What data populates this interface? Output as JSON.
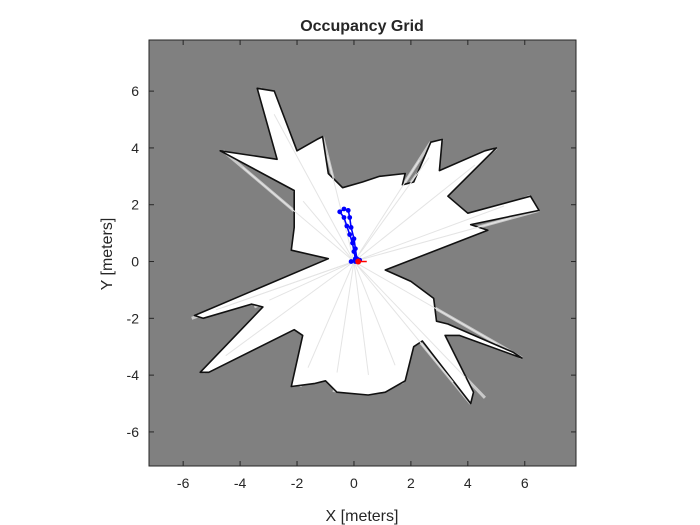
{
  "chart_data": {
    "type": "heatmap",
    "title": "Occupancy Grid",
    "xlabel": "X [meters]",
    "ylabel": "Y [meters]",
    "xlim": [
      -7.2,
      7.8
    ],
    "ylim": [
      -7.2,
      7.8
    ],
    "xticks": [
      -6,
      -4,
      -2,
      0,
      2,
      4,
      6
    ],
    "yticks": [
      -6,
      -4,
      -2,
      0,
      2,
      4,
      6
    ],
    "colors": {
      "unknown": "#808080",
      "free": "#ffffff",
      "free_shade": "#d2d2d2",
      "occupied": "#111111",
      "trajectory": "#0000ff",
      "robot": "#ff0000"
    },
    "free_space_outline": [
      [
        -0.9,
        0.1
      ],
      [
        -5.6,
        -1.9
      ],
      [
        -5.3,
        -2.0
      ],
      [
        -3.6,
        -1.5
      ],
      [
        -3.2,
        -1.6
      ],
      [
        -5.4,
        -3.9
      ],
      [
        -5.1,
        -3.9
      ],
      [
        -2.1,
        -2.4
      ],
      [
        -1.8,
        -2.6
      ],
      [
        -2.2,
        -4.4
      ],
      [
        -1.4,
        -4.3
      ],
      [
        -1.0,
        -4.2
      ],
      [
        -0.6,
        -4.6
      ],
      [
        0.5,
        -4.7
      ],
      [
        1.1,
        -4.6
      ],
      [
        1.8,
        -4.2
      ],
      [
        2.1,
        -3.0
      ],
      [
        2.4,
        -2.8
      ],
      [
        4.1,
        -5.0
      ],
      [
        4.2,
        -4.6
      ],
      [
        3.2,
        -2.6
      ],
      [
        3.7,
        -2.6
      ],
      [
        5.9,
        -3.4
      ],
      [
        5.6,
        -3.2
      ],
      [
        3.3,
        -2.2
      ],
      [
        2.9,
        -2.1
      ],
      [
        2.8,
        -1.3
      ],
      [
        2.0,
        -0.7
      ],
      [
        1.1,
        -0.3
      ],
      [
        4.7,
        1.1
      ],
      [
        4.1,
        1.3
      ],
      [
        6.5,
        1.8
      ],
      [
        6.2,
        2.3
      ],
      [
        4.0,
        1.7
      ],
      [
        3.3,
        2.3
      ],
      [
        5.0,
        4.0
      ],
      [
        4.6,
        3.9
      ],
      [
        3.0,
        3.2
      ],
      [
        3.1,
        4.3
      ],
      [
        2.7,
        4.2
      ],
      [
        2.1,
        2.8
      ],
      [
        1.7,
        2.7
      ],
      [
        1.8,
        3.1
      ],
      [
        0.9,
        3.0
      ],
      [
        0.3,
        2.8
      ],
      [
        -0.4,
        2.6
      ],
      [
        -0.9,
        3.1
      ],
      [
        -1.1,
        4.4
      ],
      [
        -1.3,
        4.3
      ],
      [
        -2.0,
        3.9
      ],
      [
        -2.8,
        6.0
      ],
      [
        -3.4,
        6.1
      ],
      [
        -2.7,
        3.6
      ],
      [
        -4.7,
        3.9
      ],
      [
        -2.1,
        2.5
      ],
      [
        -2.1,
        1.2
      ],
      [
        -2.2,
        0.4
      ]
    ],
    "rays": [
      [
        -5.7,
        -2.0
      ],
      [
        -5.3,
        -3.9
      ],
      [
        -3.5,
        -1.6
      ],
      [
        -1.9,
        -4.4
      ],
      [
        -0.7,
        -4.6
      ],
      [
        0.6,
        -4.7
      ],
      [
        1.7,
        -4.3
      ],
      [
        4.1,
        -5.0
      ],
      [
        5.9,
        -3.4
      ],
      [
        6.5,
        1.8
      ],
      [
        6.2,
        2.3
      ],
      [
        5.0,
        4.0
      ],
      [
        3.1,
        4.3
      ],
      [
        2.7,
        4.2
      ],
      [
        -1.1,
        4.4
      ],
      [
        -3.3,
        6.1
      ],
      [
        -4.6,
        3.9
      ],
      [
        -2.1,
        2.5
      ],
      [
        -5.4,
        -1.9
      ],
      [
        4.6,
        -4.8
      ]
    ],
    "trajectory": [
      [
        0.1,
        0.1
      ],
      [
        0.05,
        0.45
      ],
      [
        0.0,
        0.8
      ],
      [
        -0.1,
        1.2
      ],
      [
        -0.15,
        1.55
      ],
      [
        -0.2,
        1.8
      ],
      [
        -0.35,
        1.85
      ],
      [
        -0.5,
        1.75
      ],
      [
        -0.35,
        1.55
      ],
      [
        -0.25,
        1.25
      ],
      [
        -0.15,
        0.95
      ],
      [
        -0.05,
        0.65
      ],
      [
        0.0,
        0.35
      ],
      [
        0.05,
        0.1
      ],
      [
        -0.1,
        0.0
      ],
      [
        0.05,
        0.0
      ],
      [
        0.2,
        0.05
      ]
    ],
    "robot": [
      0.15,
      0.0
    ]
  }
}
